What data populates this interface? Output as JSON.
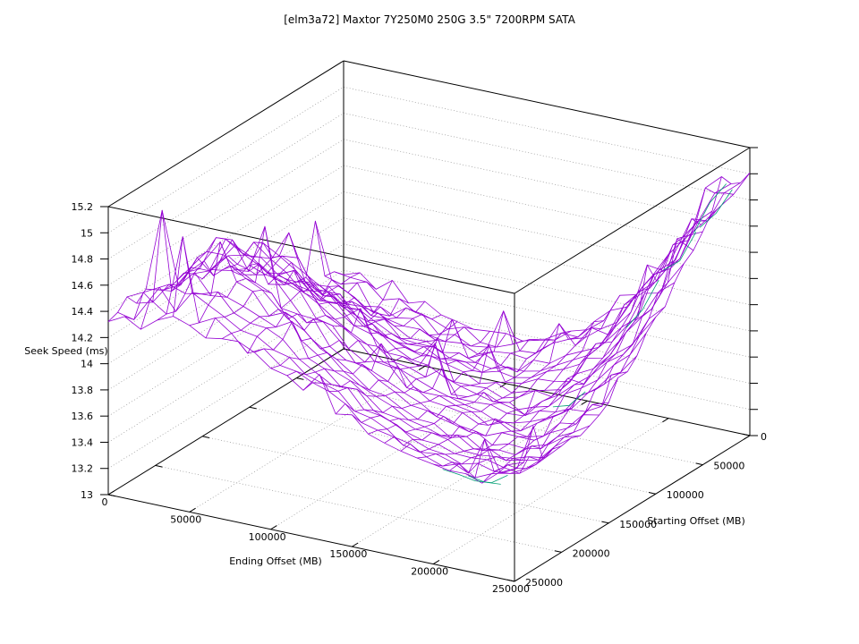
{
  "title": "[elm3a72] Maxtor 7Y250M0 250G 3.5\" 7200RPM SATA",
  "figure": {
    "background": "#ffffff"
  },
  "chart_data": {
    "type": "surface3d",
    "title": "[elm3a72] Maxtor 7Y250M0 250G 3.5\" 7200RPM SATA",
    "xlabel": "Ending Offset (MB)",
    "ylabel": "Starting Offset (MB)",
    "zlabel": "Seek Speed (ms)",
    "x_range": [
      0,
      250000
    ],
    "y_range": [
      0,
      250000
    ],
    "z_range": [
      13,
      15.2
    ],
    "x_ticks": [
      0,
      50000,
      100000,
      150000,
      200000,
      250000
    ],
    "y_ticks": [
      0,
      50000,
      100000,
      150000,
      200000,
      250000
    ],
    "z_ticks": [
      13,
      13.2,
      13.4,
      13.6,
      13.8,
      14,
      14.2,
      14.4,
      14.6,
      14.8,
      15,
      15.2
    ],
    "grid": true,
    "legend": "none",
    "mesh_color": "#9400d3",
    "secondary_mesh_color": "#009e73",
    "box_color": "#000000",
    "grid_color": "#999999",
    "grid_offsets_mb": [
      0,
      25000,
      50000,
      75000,
      100000,
      125000,
      150000,
      175000,
      200000,
      225000,
      250000
    ],
    "rows_axis": "starting_offset_mb",
    "cols_axis": "ending_offset_mb",
    "seek_speed_ms_grid": [
      [
        13.6,
        13.52,
        13.45,
        13.38,
        13.35,
        13.42,
        13.58,
        13.85,
        14.22,
        14.62,
        14.95
      ],
      [
        13.66,
        13.58,
        13.5,
        13.42,
        13.37,
        13.4,
        13.52,
        13.74,
        14.08,
        14.6,
        15.08
      ],
      [
        13.76,
        13.7,
        13.6,
        13.5,
        13.42,
        13.4,
        13.46,
        13.62,
        13.92,
        14.38,
        14.82
      ],
      [
        13.9,
        13.92,
        13.76,
        13.62,
        13.52,
        13.45,
        13.44,
        13.54,
        13.78,
        14.15,
        14.55
      ],
      [
        14.05,
        14.18,
        13.98,
        13.78,
        13.62,
        13.52,
        13.46,
        13.5,
        13.66,
        13.96,
        14.32
      ],
      [
        14.15,
        14.42,
        14.18,
        13.94,
        13.75,
        13.62,
        13.52,
        13.48,
        13.58,
        13.82,
        14.12
      ],
      [
        14.24,
        14.55,
        14.32,
        14.08,
        13.86,
        13.7,
        13.6,
        13.52,
        13.54,
        13.7,
        13.96
      ],
      [
        14.3,
        14.6,
        14.44,
        14.2,
        13.98,
        13.8,
        13.68,
        13.58,
        13.52,
        13.62,
        13.84
      ],
      [
        14.35,
        14.56,
        14.52,
        14.32,
        14.1,
        13.91,
        13.77,
        13.66,
        13.6,
        13.62,
        13.8
      ],
      [
        14.38,
        14.48,
        14.5,
        14.38,
        14.2,
        14.02,
        13.86,
        13.74,
        13.66,
        13.62,
        13.76
      ],
      [
        14.35,
        14.4,
        14.42,
        14.36,
        14.26,
        14.12,
        13.97,
        13.84,
        13.76,
        13.72,
        13.88
      ]
    ],
    "secondary_visible_segments_uw": [
      [
        0.88,
        0.92
      ],
      [
        0.84,
        0.96
      ],
      [
        0.92,
        0.96
      ],
      [
        0.96,
        0.1
      ],
      [
        0.92,
        0.16
      ],
      [
        0.94,
        0.04
      ],
      [
        0.81,
        0.44
      ],
      [
        0.84,
        0.18
      ]
    ]
  }
}
